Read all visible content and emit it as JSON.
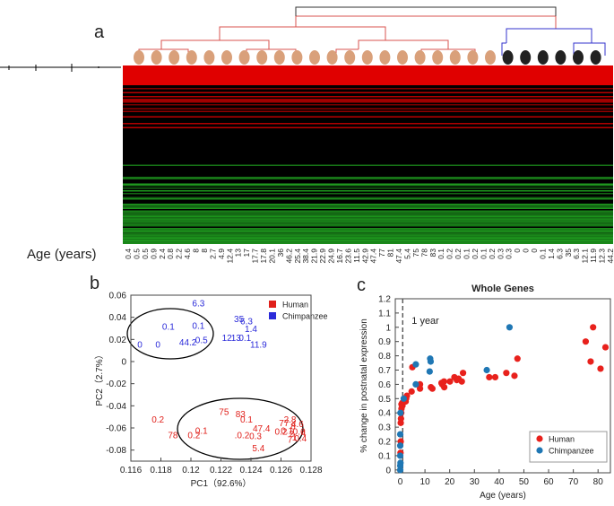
{
  "chart_data": [
    {
      "type": "heatmap",
      "panel": "a",
      "xlabel": "Age (years)",
      "categories": [
        "0.4",
        "0.5",
        "0.5",
        "0.9",
        "2.4",
        "0.8",
        "2.2",
        "4.6",
        "8",
        "8",
        "2.7",
        "4.9",
        "12.4",
        "13",
        "17",
        "17.7",
        "17.8",
        "20.1",
        "36",
        "46.2",
        "25.4",
        "38.4",
        "21.9",
        "22.9",
        "24.9",
        "16.7",
        "23.6",
        "11.5",
        "42.9",
        "47.4",
        "77",
        "81",
        "47.4",
        "5.4",
        "75",
        "78",
        "83",
        "0.1",
        "0.2",
        "0.2",
        "0.1",
        "0.2",
        "0.1",
        "0.2",
        "0.3",
        "0.3",
        "0",
        "0",
        "0",
        "0.1",
        "1.4",
        "6.3",
        "35",
        "6.3",
        "12.1",
        "11.9",
        "12.3",
        "44.2"
      ]
    },
    {
      "type": "scatter",
      "panel": "b",
      "xlabel": "PC1（92.6%）",
      "ylabel": "PC2（2.7%）",
      "xlim": [
        0.116,
        0.128
      ],
      "xticks": [
        0.116,
        0.118,
        0.12,
        0.122,
        0.124,
        0.126,
        0.128
      ],
      "ylim": [
        -0.09,
        0.06
      ],
      "yticks": [
        -0.08,
        -0.06,
        -0.04,
        -0.02,
        0,
        0.02,
        0.04,
        0.06
      ],
      "legend": "upper right",
      "series": [
        {
          "name": "Human",
          "color": "#e0201b",
          "x": [
            0.1178,
            0.1222,
            0.1233,
            0.1237,
            0.1207,
            0.1188,
            0.1202,
            0.1247,
            0.1234,
            0.1243,
            0.1245,
            0.1262,
            0.1266,
            0.1268,
            0.1271,
            0.1264,
            0.1267,
            0.1272,
            0.1269,
            0.1275,
            0.126,
            0.1266,
            0.1273
          ],
          "y": [
            -0.052,
            -0.045,
            -0.047,
            -0.052,
            -0.062,
            -0.066,
            -0.066,
            -0.06,
            -0.066,
            -0.067,
            -0.078,
            -0.055,
            -0.052,
            -0.058,
            -0.056,
            -0.062,
            -0.065,
            -0.063,
            -0.068,
            -0.064,
            -0.063,
            -0.07,
            -0.069
          ],
          "point_labels": [
            "0.2",
            "75",
            "83",
            "0.1",
            "0.1",
            "78",
            "0.2",
            "47.4",
            ".0.2",
            "0.3",
            "5.4",
            "77",
            "2.8",
            "8",
            "4.6",
            "0.1",
            "2",
            "0.6",
            "1",
            "4",
            "0.2",
            "7",
            "0.4"
          ]
        },
        {
          "name": "Chimpanzee",
          "color": "#2b2bd9",
          "x": [
            0.1205,
            0.1185,
            0.1205,
            0.1232,
            0.1237,
            0.124,
            0.1224,
            0.123,
            0.1236,
            0.1245,
            0.1166,
            0.1178,
            0.1198,
            0.1207
          ],
          "y": [
            0.053,
            0.032,
            0.033,
            0.039,
            0.037,
            0.03,
            0.022,
            0.022,
            0.022,
            0.016,
            0.016,
            0.016,
            0.018,
            0.02
          ],
          "point_labels": [
            "6.3",
            "0.1",
            "0.1",
            "35",
            "6.3",
            "1.4",
            "12",
            "13",
            "0.1",
            "11.9",
            "0",
            "0",
            "44.2",
            "0.5"
          ]
        }
      ]
    },
    {
      "type": "scatter",
      "panel": "c",
      "title": "Whole Genes",
      "xlabel": "Age (years)",
      "ylabel": "% change in postnatal expression",
      "xlim": [
        -2,
        85
      ],
      "xticks": [
        0,
        10,
        20,
        30,
        40,
        50,
        60,
        70,
        80
      ],
      "ylim": [
        -0.02,
        1.2
      ],
      "yticks": [
        0,
        0.1,
        0.2,
        0.3,
        0.4,
        0.5,
        0.6,
        0.7,
        0.8,
        0.9,
        1,
        1.1,
        1.2
      ],
      "annotations": [
        {
          "x": 1,
          "text": "1 year"
        }
      ],
      "legend": "lower right",
      "series": [
        {
          "name": "Human",
          "color": "#e8211c",
          "x": [
            0.1,
            0.2,
            0.2,
            0.3,
            0.4,
            0.5,
            0.5,
            0.8,
            0.9,
            2.2,
            2.4,
            2.7,
            4.6,
            4.9,
            8,
            8,
            12.4,
            13,
            16.7,
            17,
            17.7,
            17.8,
            20.1,
            21.9,
            22.9,
            23.6,
            24.9,
            25.4,
            36,
            38.4,
            42.9,
            46.2,
            47.4,
            75,
            77,
            78,
            81,
            83
          ],
          "y": [
            0.12,
            0.2,
            0.33,
            0.36,
            0.4,
            0.43,
            0.46,
            0.47,
            0.45,
            0.48,
            0.5,
            0.52,
            0.55,
            0.72,
            0.6,
            0.57,
            0.58,
            0.57,
            0.61,
            0.6,
            0.62,
            0.58,
            0.62,
            0.65,
            0.63,
            0.64,
            0.62,
            0.68,
            0.65,
            0.65,
            0.68,
            0.66,
            0.78,
            0.9,
            0.76,
            1.0,
            0.71,
            0.86
          ],
          "value_labels": null
        },
        {
          "name": "Chimpanzee",
          "color": "#1f77b4",
          "x": [
            0,
            0,
            0,
            0,
            0,
            0.1,
            0.1,
            1.4,
            6.3,
            6.3,
            11.9,
            12.1,
            12.3,
            35,
            44.2
          ],
          "y": [
            0.0,
            0.03,
            0.1,
            0.17,
            0.25,
            0.05,
            0.4,
            0.5,
            0.74,
            0.6,
            0.69,
            0.78,
            0.76,
            0.7,
            1.0
          ]
        }
      ]
    }
  ]
}
